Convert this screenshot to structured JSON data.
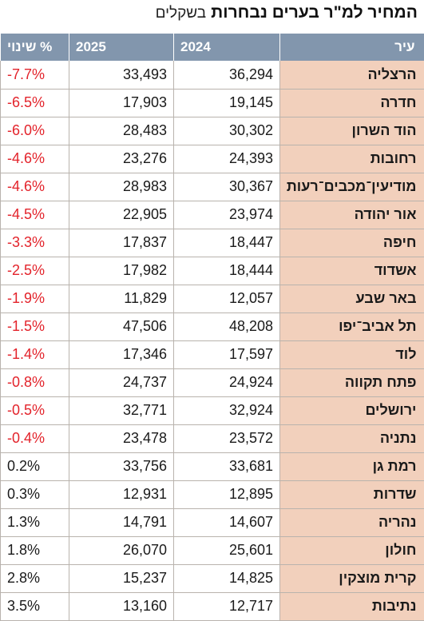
{
  "title": {
    "main": "המחיר למ\"ר בערים נבחרות",
    "subtitle": "בשקלים"
  },
  "colors": {
    "header_bg": "#8296ad",
    "city_bg": "#f2d0bc",
    "negative": "#e3232b",
    "positive": "#1a1a1a"
  },
  "headers": {
    "city": "עיר",
    "y2024": "2024",
    "y2025": "2025",
    "change": "% שינוי"
  },
  "rows": [
    {
      "city": "הרצליה",
      "y2024": "36,294",
      "y2025": "33,493",
      "change": "-7.7%"
    },
    {
      "city": "חדרה",
      "y2024": "19,145",
      "y2025": "17,903",
      "change": "-6.5%"
    },
    {
      "city": "הוד השרון",
      "y2024": "30,302",
      "y2025": "28,483",
      "change": "-6.0%"
    },
    {
      "city": "רחובות",
      "y2024": "24,393",
      "y2025": "23,276",
      "change": "-4.6%"
    },
    {
      "city": "מודיעין־מכבים־רעות",
      "y2024": "30,367",
      "y2025": "28,983",
      "change": "-4.6%"
    },
    {
      "city": "אור יהודה",
      "y2024": "23,974",
      "y2025": "22,905",
      "change": "-4.5%"
    },
    {
      "city": "חיפה",
      "y2024": "18,447",
      "y2025": "17,837",
      "change": "-3.3%"
    },
    {
      "city": "אשדוד",
      "y2024": "18,444",
      "y2025": "17,982",
      "change": "-2.5%"
    },
    {
      "city": "באר שבע",
      "y2024": "12,057",
      "y2025": "11,829",
      "change": "-1.9%"
    },
    {
      "city": "תל אביב־יפו",
      "y2024": "48,208",
      "y2025": "47,506",
      "change": "-1.5%"
    },
    {
      "city": "לוד",
      "y2024": "17,597",
      "y2025": "17,346",
      "change": "-1.4%"
    },
    {
      "city": "פתח תקווה",
      "y2024": "24,924",
      "y2025": "24,737",
      "change": "-0.8%"
    },
    {
      "city": "ירושלים",
      "y2024": "32,924",
      "y2025": "32,771",
      "change": "-0.5%"
    },
    {
      "city": "נתניה",
      "y2024": "23,572",
      "y2025": "23,478",
      "change": "-0.4%"
    },
    {
      "city": "רמת גן",
      "y2024": "33,681",
      "y2025": "33,756",
      "change": "0.2%"
    },
    {
      "city": "שדרות",
      "y2024": "12,895",
      "y2025": "12,931",
      "change": "0.3%"
    },
    {
      "city": "נהריה",
      "y2024": "14,607",
      "y2025": "14,791",
      "change": "1.3%"
    },
    {
      "city": "חולון",
      "y2024": "25,601",
      "y2025": "26,070",
      "change": "1.8%"
    },
    {
      "city": "קרית מוצקין",
      "y2024": "14,825",
      "y2025": "15,237",
      "change": "2.8%"
    },
    {
      "city": "נתיבות",
      "y2024": "12,717",
      "y2025": "13,160",
      "change": "3.5%"
    }
  ]
}
